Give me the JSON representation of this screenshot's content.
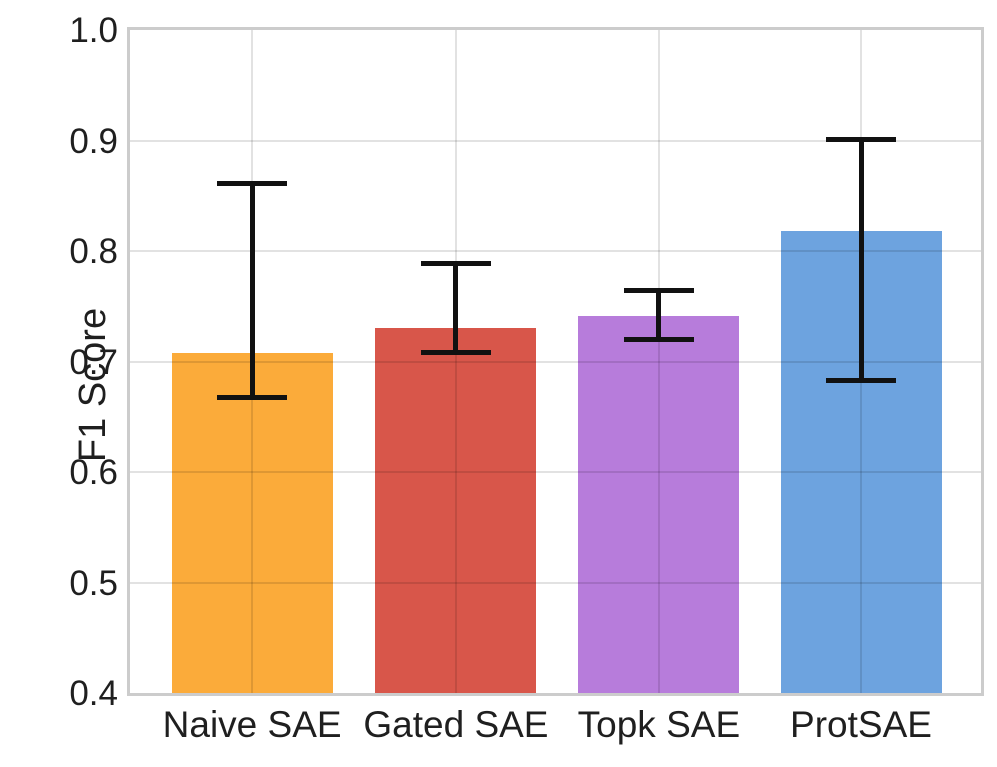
{
  "chart_data": {
    "type": "bar",
    "title": "",
    "xlabel": "",
    "ylabel": "F1 Score",
    "categories": [
      "Naive SAE",
      "Gated SAE",
      "Topk SAE",
      "ProtSAE"
    ],
    "values": [
      0.708,
      0.73,
      0.741,
      0.818
    ],
    "error_low": [
      0.667,
      0.708,
      0.72,
      0.683
    ],
    "error_high": [
      0.861,
      0.789,
      0.764,
      0.901
    ],
    "bar_colors": [
      "#FBAB3A",
      "#D8564A",
      "#B77CDB",
      "#6DA3DF"
    ],
    "errorbar_color": "#111111",
    "ylim": [
      0.4,
      1.0
    ],
    "yticks": [
      0.4,
      0.5,
      0.6,
      0.7,
      0.8,
      0.9,
      1.0
    ],
    "ytick_labels": [
      "0.4",
      "0.5",
      "0.6",
      "0.7",
      "0.8",
      "0.9",
      "1.0"
    ],
    "grid": true,
    "legend": "none"
  }
}
